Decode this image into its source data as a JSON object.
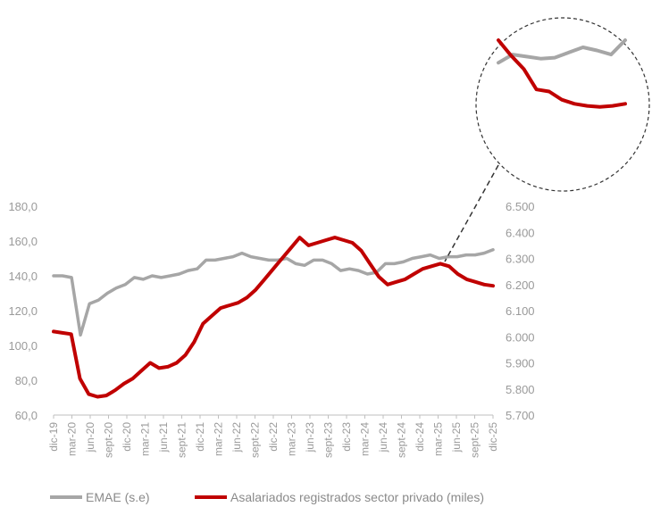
{
  "chart_data": {
    "type": "line",
    "y_left_ticks": [
      "180,0",
      "160,0",
      "140,0",
      "120,0",
      "100,0",
      "80,0",
      "60,0"
    ],
    "y_left_lim": [
      60,
      180
    ],
    "y_right_ticks": [
      "6.500",
      "6.400",
      "6.300",
      "6.200",
      "6.100",
      "6.000",
      "5.900",
      "5.800",
      "5.700"
    ],
    "y_right_lim": [
      5700,
      6500
    ],
    "x_tick_labels": [
      "dic-19",
      "mar-20",
      "jun-20",
      "sept-20",
      "dic-20",
      "mar-21",
      "jun-21",
      "sept-21",
      "dic-21",
      "mar-22",
      "jun-22",
      "sept-22",
      "dic-22",
      "mar-23",
      "jun-23",
      "sept-23",
      "dic-23",
      "mar-24",
      "jun-24",
      "sept-24",
      "dic-24",
      "mar-25",
      "jun-25",
      "sept-25",
      "dic-25"
    ],
    "series": [
      {
        "name": "EMAE (s.e)",
        "axis": "left",
        "color": "#a6a6a6",
        "values": [
          140,
          140,
          139,
          106,
          124,
          126,
          130,
          133,
          135,
          139,
          138,
          140,
          139,
          140,
          141,
          143,
          144,
          149,
          149,
          150,
          151,
          153,
          151,
          150,
          149,
          149,
          150,
          147,
          146,
          149,
          149,
          147,
          143,
          144,
          143,
          141,
          142,
          147,
          147,
          148,
          150,
          151,
          152,
          150,
          151,
          151,
          152,
          152,
          153,
          155
        ]
      },
      {
        "name": "Asalariados registrados sector privado (miles)",
        "axis": "right",
        "color": "#c00000",
        "values": [
          6020,
          6015,
          6010,
          5840,
          5780,
          5770,
          5775,
          5795,
          5820,
          5840,
          5870,
          5900,
          5880,
          5885,
          5900,
          5930,
          5980,
          6050,
          6080,
          6110,
          6120,
          6130,
          6150,
          6180,
          6220,
          6260,
          6300,
          6340,
          6380,
          6350,
          6360,
          6370,
          6380,
          6370,
          6360,
          6330,
          6280,
          6230,
          6200,
          6210,
          6220,
          6240,
          6260,
          6270,
          6280,
          6270,
          6240,
          6220,
          6210,
          6200,
          6195
        ]
      }
    ],
    "zoom_inset": {
      "description_visible": false,
      "emae_points": [
        0.78,
        0.86,
        0.84,
        0.82,
        0.83,
        0.88,
        0.93,
        0.9,
        0.86,
        1.0
      ],
      "asalariados_points": [
        1.0,
        0.85,
        0.72,
        0.52,
        0.5,
        0.42,
        0.38,
        0.36,
        0.35,
        0.36,
        0.38
      ]
    },
    "legend_position": "bottom",
    "grid": false
  },
  "legend": {
    "items": [
      {
        "label": "EMAE (s.e)",
        "color": "#a6a6a6"
      },
      {
        "label": "Asalariados registrados sector privado (miles)",
        "color": "#c00000"
      }
    ]
  }
}
